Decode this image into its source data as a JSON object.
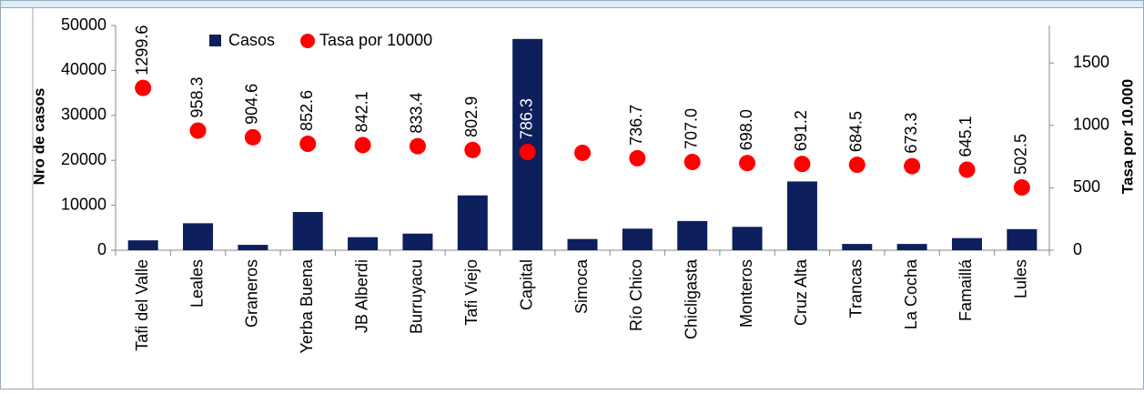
{
  "chart_data": {
    "type": "bar-scatter",
    "categories": [
      "Tafi del Valle",
      "Leales",
      "Graneros",
      "Yerba Buena",
      "JB Alberdi",
      "Burruyacu",
      "Tafi Viejo",
      "Capital",
      "Simoca",
      "Río Chico",
      "Chicligasta",
      "Monteros",
      "Cruz Alta",
      "Trancas",
      "La Cocha",
      "Famaillá",
      "Lules"
    ],
    "series": [
      {
        "name": "Casos",
        "color": "#0d1f5c",
        "type": "bar",
        "values": [
          2200,
          6000,
          1200,
          8500,
          2900,
          3700,
          12200,
          47000,
          2500,
          4800,
          6500,
          5200,
          15300,
          1400,
          1400,
          2700,
          4700
        ]
      },
      {
        "name": "Tasa por 10000",
        "color": "#ff0000",
        "type": "scatter",
        "axis": "y2",
        "values": [
          1299.6,
          958.3,
          904.6,
          852.6,
          842.1,
          833.4,
          802.9,
          786.3,
          780,
          736.7,
          707.0,
          698.0,
          691.2,
          684.5,
          673.3,
          645.1,
          502.5
        ],
        "value_labels": [
          "1299.6",
          "958.3",
          "904.6",
          "852.6",
          "842.1",
          "833.4",
          "802.9",
          "786.3",
          null,
          "736.7",
          "707.0",
          "698.0",
          "691.2",
          "684.5",
          "673.3",
          "645.1",
          "502.5"
        ]
      }
    ],
    "y_label": "Nro de casos",
    "y2_label": "Tasa por 10.000",
    "ylim": [
      0,
      50000
    ],
    "yticks": [
      0,
      10000,
      20000,
      30000,
      40000,
      50000
    ],
    "y2lim": [
      0,
      1800
    ],
    "y2ticks": [
      0,
      500,
      1000,
      1500
    ]
  }
}
